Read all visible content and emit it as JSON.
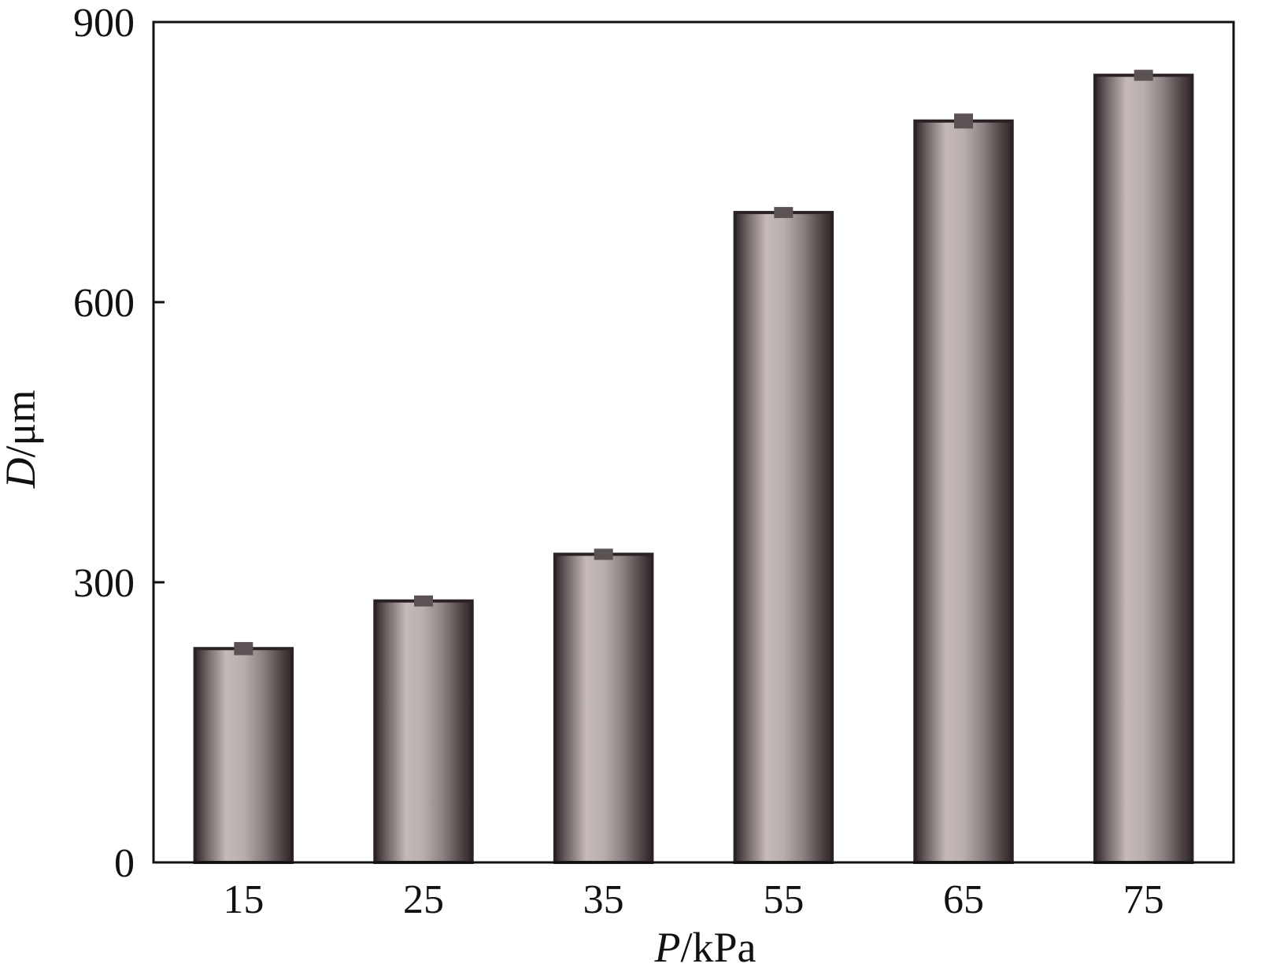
{
  "chart_data": {
    "type": "bar",
    "categories": [
      "15",
      "25",
      "35",
      "55",
      "65",
      "75"
    ],
    "values": [
      229,
      280,
      330,
      696,
      794,
      843
    ],
    "errors": [
      7,
      5,
      6,
      4,
      8,
      4
    ],
    "xlabel_var": "P",
    "xlabel_unit": "/kPa",
    "ylabel_var": "D",
    "ylabel_unit": "/μm",
    "ylim": [
      0,
      900
    ],
    "yticks": [
      "0",
      "300",
      "600",
      "900"
    ],
    "ytick_values": [
      0,
      300,
      600,
      900
    ],
    "grid": false,
    "colors": {
      "bar_edge": "#2a2223",
      "bar_dark": "#3a3032",
      "bar_light": "#c4b9b8",
      "error_marker": "#5a5253",
      "axis": "#111111"
    }
  }
}
